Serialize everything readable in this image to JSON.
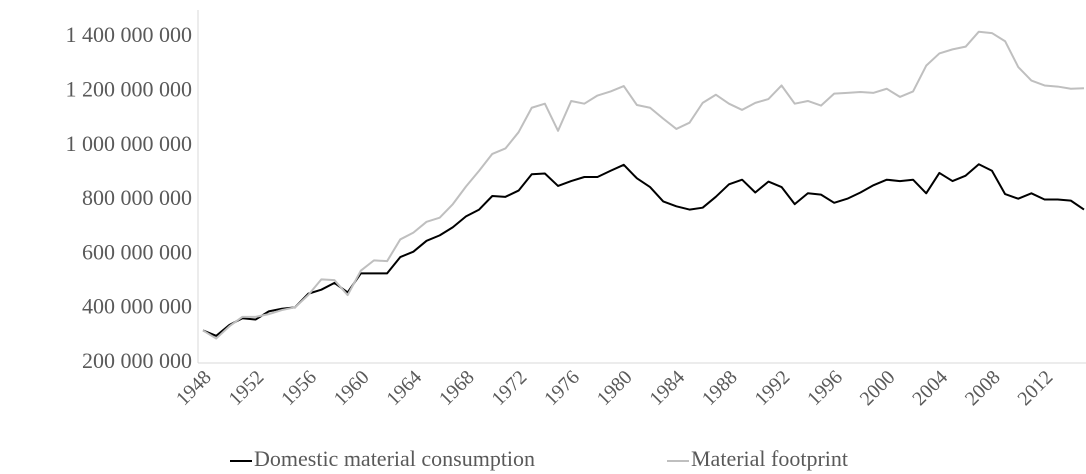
{
  "chart_data": {
    "type": "line",
    "x": [
      1948,
      1949,
      1950,
      1951,
      1952,
      1953,
      1954,
      1955,
      1956,
      1957,
      1958,
      1959,
      1960,
      1961,
      1962,
      1963,
      1964,
      1965,
      1966,
      1967,
      1968,
      1969,
      1970,
      1971,
      1972,
      1973,
      1974,
      1975,
      1976,
      1977,
      1978,
      1979,
      1980,
      1981,
      1982,
      1983,
      1984,
      1985,
      1986,
      1987,
      1988,
      1989,
      1990,
      1991,
      1992,
      1993,
      1994,
      1995,
      1996,
      1997,
      1998,
      1999,
      2000,
      2001,
      2002,
      2003,
      2004,
      2005,
      2006,
      2007,
      2008,
      2009,
      2010,
      2011,
      2012,
      2013,
      2014,
      2015
    ],
    "series": [
      {
        "name": "Domestic material consumption",
        "color": "#000000",
        "values": [
          320000000,
          300000000,
          340000000,
          365000000,
          360000000,
          390000000,
          400000000,
          405000000,
          455000000,
          470000000,
          495000000,
          460000000,
          530000000,
          530000000,
          530000000,
          590000000,
          610000000,
          650000000,
          670000000,
          700000000,
          740000000,
          765000000,
          815000000,
          812000000,
          835000000,
          895000000,
          898000000,
          852000000,
          870000000,
          885000000,
          885000000,
          908000000,
          930000000,
          880000000,
          848000000,
          795000000,
          777000000,
          765000000,
          772000000,
          812000000,
          858000000,
          875000000,
          828000000,
          868000000,
          848000000,
          785000000,
          825000000,
          820000000,
          790000000,
          805000000,
          828000000,
          855000000,
          875000000,
          870000000,
          875000000,
          825000000,
          900000000,
          870000000,
          890000000,
          932000000,
          908000000,
          822000000,
          805000000,
          825000000,
          802000000,
          802000000,
          798000000,
          765000000
        ]
      },
      {
        "name": "Material footprint",
        "color": "#bfbfbf",
        "values": [
          320000000,
          290000000,
          335000000,
          370000000,
          370000000,
          380000000,
          395000000,
          405000000,
          450000000,
          508000000,
          505000000,
          450000000,
          540000000,
          578000000,
          575000000,
          655000000,
          680000000,
          720000000,
          735000000,
          785000000,
          850000000,
          908000000,
          970000000,
          990000000,
          1050000000,
          1140000000,
          1155000000,
          1055000000,
          1165000000,
          1155000000,
          1185000000,
          1200000000,
          1220000000,
          1150000000,
          1140000000,
          1100000000,
          1062000000,
          1085000000,
          1158000000,
          1188000000,
          1155000000,
          1132000000,
          1158000000,
          1172000000,
          1222000000,
          1155000000,
          1165000000,
          1148000000,
          1192000000,
          1195000000,
          1198000000,
          1195000000,
          1210000000,
          1180000000,
          1200000000,
          1295000000,
          1340000000,
          1355000000,
          1365000000,
          1420000000,
          1415000000,
          1385000000,
          1290000000,
          1240000000,
          1222000000,
          1218000000,
          1210000000,
          1212000000
        ]
      }
    ],
    "xlim": [
      1948,
      2015
    ],
    "xticks": [
      1948,
      1952,
      1956,
      1960,
      1964,
      1968,
      1972,
      1976,
      1980,
      1984,
      1988,
      1992,
      1996,
      2000,
      2004,
      2008,
      2012
    ],
    "ylim": [
      200000000,
      1500000000
    ],
    "yticks": [
      {
        "value": 200000000,
        "label": "200 000 000"
      },
      {
        "value": 400000000,
        "label": "400 000 000"
      },
      {
        "value": 600000000,
        "label": "600 000 000"
      },
      {
        "value": 800000000,
        "label": "800 000 000"
      },
      {
        "value": 1000000000,
        "label": "1 000 000 000"
      },
      {
        "value": 1200000000,
        "label": "1 200 000 000"
      },
      {
        "value": 1400000000,
        "label": "1 400 000 000"
      }
    ],
    "grid": false,
    "legend": "bottom"
  }
}
